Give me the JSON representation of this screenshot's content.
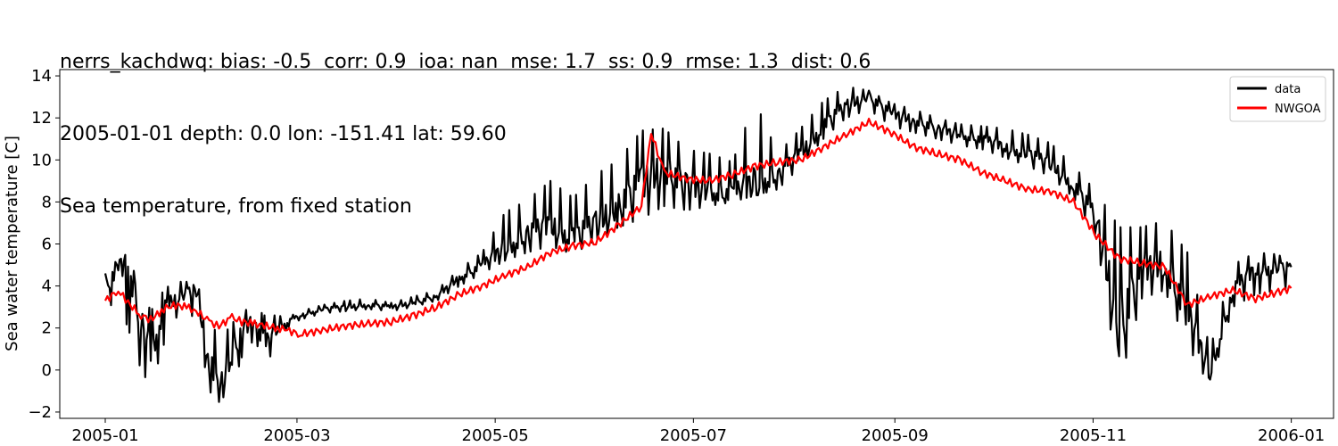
{
  "chart_data": {
    "type": "line",
    "title_lines": [
      "nerrs_kachdwq: bias: -0.5  corr: 0.9  ioa: nan  mse: 1.7  ss: 0.9  rmse: 1.3  dist: 0.6",
      "2005-01-01 depth: 0.0 lon: -151.41 lat: 59.60",
      "Sea temperature, from fixed station"
    ],
    "ylabel": "Sea water temperature [C]",
    "xlabel": "",
    "x_ticks": [
      "2005-01",
      "2005-03",
      "2005-05",
      "2005-07",
      "2005-09",
      "2005-11",
      "2006-01"
    ],
    "y_ticks": [
      "−2",
      "0",
      "2",
      "4",
      "6",
      "8",
      "10",
      "12",
      "14"
    ],
    "ylim": [
      -2.3,
      14.3
    ],
    "xlim": [
      "2004-12-18",
      "2006-01-14"
    ],
    "grid": false,
    "legend_position": "top-right",
    "series": [
      {
        "name": "data",
        "color": "#000000",
        "x": [
          "2005-01-01",
          "2005-01-05",
          "2005-01-08",
          "2005-01-12",
          "2005-01-15",
          "2005-01-19",
          "2005-01-22",
          "2005-01-26",
          "2005-01-29",
          "2005-02-02",
          "2005-02-05",
          "2005-02-09",
          "2005-02-12",
          "2005-02-16",
          "2005-02-19",
          "2005-02-23",
          "2005-02-26",
          "2005-03-02",
          "2005-03-09",
          "2005-03-16",
          "2005-03-23",
          "2005-03-30",
          "2005-04-06",
          "2005-04-13",
          "2005-04-20",
          "2005-04-27",
          "2005-05-04",
          "2005-05-11",
          "2005-05-18",
          "2005-05-25",
          "2005-06-01",
          "2005-06-08",
          "2005-06-15",
          "2005-06-22",
          "2005-06-29",
          "2005-07-06",
          "2005-07-13",
          "2005-07-20",
          "2005-07-27",
          "2005-08-03",
          "2005-08-10",
          "2005-08-17",
          "2005-08-24",
          "2005-08-31",
          "2005-09-07",
          "2005-09-14",
          "2005-09-21",
          "2005-09-28",
          "2005-10-05",
          "2005-10-12",
          "2005-10-19",
          "2005-10-26",
          "2005-11-02",
          "2005-11-09",
          "2005-11-16",
          "2005-11-23",
          "2005-11-30",
          "2005-12-07",
          "2005-12-14",
          "2005-12-21",
          "2005-12-28",
          "2006-01-01"
        ],
        "y": [
          3.9,
          4.8,
          5.1,
          2.2,
          0.8,
          2.9,
          3.3,
          3.7,
          3.8,
          0.5,
          -1.0,
          0.8,
          1.8,
          2.5,
          1.2,
          2.0,
          2.3,
          2.6,
          2.9,
          3.0,
          3.1,
          3.0,
          3.2,
          3.5,
          4.4,
          5.0,
          5.8,
          6.5,
          6.9,
          6.3,
          7.0,
          7.8,
          8.9,
          9.6,
          8.8,
          8.5,
          8.4,
          8.9,
          9.3,
          10.3,
          11.6,
          12.6,
          13.0,
          12.2,
          11.9,
          11.5,
          11.2,
          11.0,
          10.6,
          10.3,
          9.8,
          8.8,
          7.3,
          2.0,
          4.8,
          5.1,
          2.8,
          -0.2,
          3.8,
          4.8,
          4.9,
          4.9
        ],
        "y_low": [
          3.0,
          3.2,
          2.0,
          0.0,
          -0.8,
          1.2,
          2.4,
          2.8,
          2.4,
          -1.0,
          -1.5,
          -0.9,
          0.6,
          1.5,
          0.2,
          1.2,
          2.0,
          2.4,
          2.7,
          2.8,
          2.9,
          2.8,
          3.0,
          3.3,
          4.0,
          4.6,
          5.2,
          5.6,
          5.9,
          5.5,
          6.2,
          6.8,
          7.2,
          7.8,
          7.6,
          7.8,
          8.0,
          8.3,
          8.6,
          9.7,
          11.0,
          12.0,
          12.4,
          11.6,
          11.3,
          11.0,
          10.7,
          10.5,
          10.1,
          9.7,
          9.2,
          8.2,
          6.3,
          -0.7,
          3.4,
          3.8,
          1.2,
          -0.8,
          3.0,
          3.6,
          3.8,
          3.9
        ],
        "y_high": [
          4.6,
          5.3,
          5.3,
          4.0,
          2.8,
          3.8,
          4.2,
          4.2,
          4.2,
          2.6,
          1.4,
          2.2,
          2.8,
          3.0,
          2.6,
          2.6,
          2.5,
          2.8,
          3.1,
          3.3,
          3.4,
          3.2,
          3.5,
          3.8,
          4.8,
          5.6,
          7.5,
          8.1,
          9.0,
          8.2,
          9.3,
          10.0,
          11.4,
          11.5,
          10.5,
          10.3,
          9.9,
          12.8,
          10.3,
          11.5,
          12.8,
          13.5,
          13.3,
          12.7,
          12.4,
          12.0,
          11.7,
          11.6,
          11.5,
          11.2,
          10.8,
          9.7,
          8.5,
          6.8,
          6.8,
          7.1,
          5.6,
          1.0,
          5.0,
          5.6,
          5.5,
          5.0
        ]
      },
      {
        "name": "NWGOA",
        "color": "#ff0000",
        "x": [
          "2005-01-01",
          "2005-01-05",
          "2005-01-08",
          "2005-01-12",
          "2005-01-15",
          "2005-01-19",
          "2005-01-22",
          "2005-01-26",
          "2005-01-29",
          "2005-02-02",
          "2005-02-05",
          "2005-02-09",
          "2005-02-12",
          "2005-02-16",
          "2005-02-19",
          "2005-02-23",
          "2005-02-26",
          "2005-03-02",
          "2005-03-09",
          "2005-03-16",
          "2005-03-23",
          "2005-03-30",
          "2005-04-06",
          "2005-04-13",
          "2005-04-20",
          "2005-04-27",
          "2005-05-04",
          "2005-05-11",
          "2005-05-18",
          "2005-05-25",
          "2005-06-01",
          "2005-06-08",
          "2005-06-15",
          "2005-06-18",
          "2005-06-22",
          "2005-06-29",
          "2005-07-06",
          "2005-07-13",
          "2005-07-20",
          "2005-07-27",
          "2005-08-03",
          "2005-08-10",
          "2005-08-17",
          "2005-08-24",
          "2005-08-31",
          "2005-09-07",
          "2005-09-14",
          "2005-09-21",
          "2005-09-28",
          "2005-10-05",
          "2005-10-12",
          "2005-10-19",
          "2005-10-26",
          "2005-11-02",
          "2005-11-09",
          "2005-11-16",
          "2005-11-23",
          "2005-11-30",
          "2005-12-07",
          "2005-12-14",
          "2005-12-21",
          "2005-12-28",
          "2006-01-01"
        ],
        "y": [
          3.3,
          3.8,
          3.2,
          2.6,
          2.4,
          2.9,
          3.1,
          3.0,
          2.8,
          2.3,
          2.1,
          2.5,
          2.3,
          2.2,
          2.1,
          2.0,
          1.9,
          1.7,
          1.9,
          2.1,
          2.2,
          2.3,
          2.6,
          3.0,
          3.6,
          4.0,
          4.5,
          4.9,
          5.6,
          5.9,
          6.1,
          6.9,
          7.8,
          11.3,
          9.4,
          9.1,
          9.0,
          9.3,
          9.7,
          9.9,
          10.0,
          10.6,
          11.2,
          11.8,
          11.3,
          10.6,
          10.3,
          10.0,
          9.4,
          9.0,
          8.6,
          8.5,
          8.0,
          6.4,
          5.3,
          5.1,
          4.9,
          3.1,
          3.5,
          3.8,
          3.4,
          3.7,
          3.9
        ]
      }
    ]
  }
}
